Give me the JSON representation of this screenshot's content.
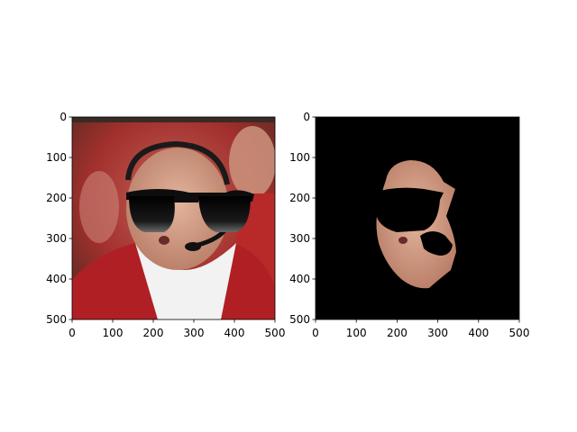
{
  "figure": {
    "background": "#ffffff",
    "panels": [
      {
        "name": "left-panel",
        "content": "photo",
        "xticks": [
          "0",
          "100",
          "200",
          "300",
          "400",
          "500"
        ],
        "yticks": [
          "0",
          "100",
          "200",
          "300",
          "400",
          "500"
        ]
      },
      {
        "name": "right-panel",
        "content": "masked-face",
        "xticks": [
          "0",
          "100",
          "200",
          "300",
          "400",
          "500"
        ],
        "yticks": [
          "0",
          "100",
          "200",
          "300",
          "400",
          "500"
        ]
      }
    ]
  },
  "colors": {
    "background_red": "#a3302c",
    "jacket_red": "#b01f24",
    "skin": "#d9a48a",
    "shirt": "#f2f2f2",
    "sunglasses": "#0d0d0d",
    "mask_background": "#000000"
  }
}
